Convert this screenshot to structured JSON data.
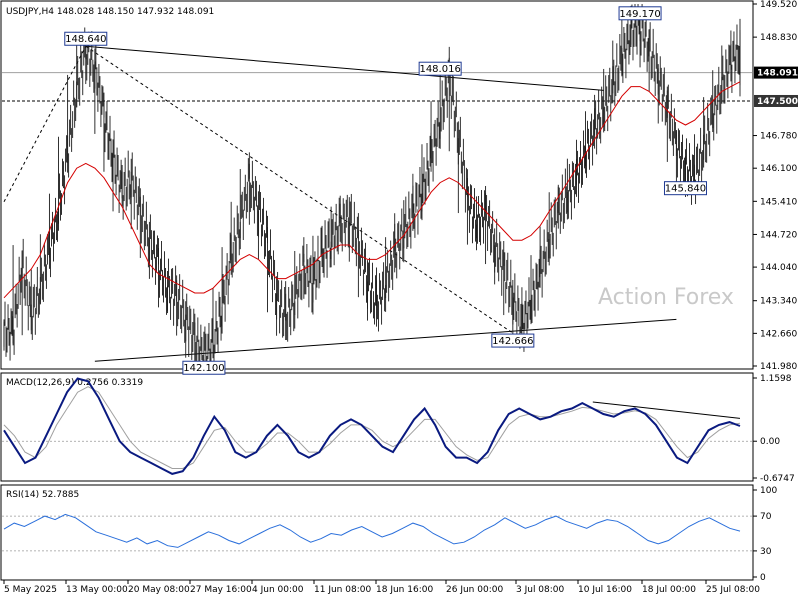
{
  "chart_data": [
    {
      "type": "candlestick",
      "panel": "price",
      "header": "USDJPY,H4  148.028 148.150 147.932 148.091",
      "ylim": [
        141.98,
        149.52
      ],
      "y_ticks": [
        "149.520",
        "148.830",
        "148.091",
        "147.500",
        "146.780",
        "146.100",
        "145.410",
        "144.720",
        "144.040",
        "143.340",
        "142.660",
        "141.980"
      ],
      "current_price": "148.091",
      "horizontal_level": "147.500",
      "close_series": [
        142.7,
        144.1,
        143.0,
        143.6,
        144.4,
        145.2,
        146.4,
        147.7,
        148.55,
        148.2,
        147.2,
        146.3,
        145.6,
        145.9,
        145.2,
        144.6,
        144.1,
        143.6,
        143.4,
        143.0,
        142.5,
        142.2,
        142.4,
        143.2,
        144.2,
        145.0,
        145.8,
        145.3,
        144.5,
        143.5,
        142.9,
        143.4,
        144.0,
        143.7,
        144.3,
        144.6,
        144.9,
        145.1,
        144.5,
        143.8,
        143.2,
        143.7,
        144.3,
        144.8,
        145.1,
        145.6,
        146.3,
        147.1,
        148.0,
        146.8,
        145.5,
        144.9,
        145.2,
        144.5,
        144.0,
        143.4,
        142.8,
        143.3,
        143.9,
        144.6,
        145.2,
        145.5,
        145.9,
        146.4,
        146.9,
        147.3,
        147.8,
        148.4,
        148.9,
        149.1,
        148.6,
        148.0,
        147.4,
        146.6,
        146.1,
        145.9,
        146.5,
        147.2,
        147.8,
        148.3,
        148.6,
        148.09
      ],
      "ma_series": [
        143.4,
        143.6,
        143.8,
        144.0,
        144.3,
        144.8,
        145.3,
        145.8,
        146.1,
        146.2,
        146.1,
        145.9,
        145.6,
        145.3,
        144.9,
        144.5,
        144.1,
        143.9,
        143.8,
        143.7,
        143.6,
        143.5,
        143.5,
        143.6,
        143.8,
        144.0,
        144.2,
        144.3,
        144.2,
        144.0,
        143.8,
        143.8,
        143.9,
        144.0,
        144.1,
        144.3,
        144.4,
        144.5,
        144.5,
        144.3,
        144.2,
        144.2,
        144.3,
        144.5,
        144.7,
        145.0,
        145.3,
        145.6,
        145.8,
        145.9,
        145.8,
        145.6,
        145.4,
        145.2,
        145.0,
        144.8,
        144.6,
        144.6,
        144.7,
        144.9,
        145.2,
        145.5,
        145.8,
        146.1,
        146.4,
        146.7,
        147.0,
        147.3,
        147.6,
        147.8,
        147.8,
        147.7,
        147.5,
        147.3,
        147.1,
        147.0,
        147.1,
        147.3,
        147.5,
        147.7,
        147.8,
        147.9
      ],
      "callouts": [
        {
          "label": "148.640",
          "value": 148.64,
          "index": 9
        },
        {
          "label": "148.016",
          "value": 148.016,
          "index": 48
        },
        {
          "label": "149.170",
          "value": 149.17,
          "index": 70
        },
        {
          "label": "145.840",
          "value": 145.84,
          "index": 75
        },
        {
          "label": "142.100",
          "value": 142.1,
          "index": 22
        },
        {
          "label": "142.666",
          "value": 142.666,
          "index": 56
        }
      ],
      "trendlines": [
        {
          "style": "solid",
          "from": {
            "index": 9,
            "value": 148.64
          },
          "to": {
            "index": 66,
            "value": 147.72
          }
        },
        {
          "style": "solid",
          "from": {
            "index": 10,
            "value": 142.08
          },
          "to": {
            "index": 74,
            "value": 142.95
          }
        },
        {
          "style": "dashed",
          "from": {
            "index": 0,
            "value": 145.4
          },
          "to": {
            "index": 9,
            "value": 148.64
          }
        },
        {
          "style": "dashed",
          "from": {
            "index": 9,
            "value": 148.64
          },
          "to": {
            "index": 56,
            "value": 142.666
          }
        }
      ],
      "watermark": "Action Forex"
    },
    {
      "type": "line",
      "panel": "macd",
      "header": "MACD(12,26,9) 0.2756 0.3319",
      "ylim": [
        -0.6747,
        1.1598
      ],
      "y_ticks": [
        "1.1598",
        "0.00",
        "-0.6747"
      ],
      "macd": [
        0.2,
        -0.1,
        -0.4,
        -0.3,
        0.1,
        0.5,
        0.9,
        1.15,
        1.1,
        0.8,
        0.4,
        0.0,
        -0.2,
        -0.3,
        -0.4,
        -0.5,
        -0.6,
        -0.55,
        -0.3,
        0.1,
        0.45,
        0.2,
        -0.2,
        -0.3,
        -0.2,
        0.1,
        0.3,
        0.1,
        -0.2,
        -0.3,
        -0.2,
        0.1,
        0.3,
        0.4,
        0.3,
        0.1,
        -0.1,
        -0.2,
        0.1,
        0.4,
        0.6,
        0.3,
        -0.1,
        -0.3,
        -0.3,
        -0.4,
        -0.2,
        0.2,
        0.5,
        0.6,
        0.5,
        0.4,
        0.45,
        0.55,
        0.6,
        0.7,
        0.6,
        0.5,
        0.45,
        0.55,
        0.6,
        0.5,
        0.3,
        0.0,
        -0.3,
        -0.4,
        -0.1,
        0.2,
        0.3,
        0.35,
        0.28
      ],
      "signal": [
        0.3,
        0.1,
        -0.2,
        -0.3,
        -0.1,
        0.3,
        0.6,
        0.9,
        1.0,
        0.9,
        0.6,
        0.3,
        0.0,
        -0.2,
        -0.3,
        -0.4,
        -0.5,
        -0.5,
        -0.4,
        -0.1,
        0.2,
        0.25,
        0.0,
        -0.2,
        -0.2,
        -0.05,
        0.15,
        0.15,
        0.0,
        -0.2,
        -0.2,
        -0.05,
        0.15,
        0.3,
        0.3,
        0.2,
        0.0,
        -0.1,
        0.0,
        0.2,
        0.4,
        0.4,
        0.15,
        -0.1,
        -0.25,
        -0.35,
        -0.3,
        0.0,
        0.3,
        0.45,
        0.5,
        0.45,
        0.45,
        0.5,
        0.55,
        0.62,
        0.6,
        0.55,
        0.5,
        0.52,
        0.56,
        0.52,
        0.4,
        0.15,
        -0.1,
        -0.3,
        -0.2,
        0.05,
        0.2,
        0.3,
        0.33
      ]
    },
    {
      "type": "line",
      "panel": "rsi",
      "header": "RSI(14) 52.7885",
      "ylim": [
        0,
        100
      ],
      "y_ticks": [
        "100",
        "70",
        "30",
        "0"
      ],
      "levels": [
        70,
        30
      ],
      "rsi": [
        55,
        62,
        58,
        64,
        70,
        66,
        72,
        68,
        60,
        52,
        48,
        44,
        40,
        45,
        38,
        42,
        36,
        34,
        40,
        46,
        52,
        48,
        42,
        38,
        44,
        50,
        56,
        60,
        54,
        46,
        40,
        44,
        50,
        48,
        54,
        58,
        52,
        46,
        50,
        56,
        62,
        58,
        50,
        44,
        38,
        40,
        46,
        54,
        60,
        68,
        62,
        56,
        60,
        66,
        70,
        64,
        60,
        56,
        62,
        66,
        64,
        58,
        50,
        42,
        38,
        42,
        50,
        58,
        64,
        68,
        62,
        56,
        52.8
      ]
    }
  ],
  "time_axis": [
    "5 May 2025",
    "13 May 00:00",
    "20 May 08:00",
    "27 May 16:00",
    "4 Jun 00:00",
    "11 Jun 08:00",
    "18 Jun 16:00",
    "26 Jun 00:00",
    "3 Jul 08:00",
    "10 Jul 16:00",
    "18 Jul 00:00",
    "25 Jul 08:00"
  ]
}
